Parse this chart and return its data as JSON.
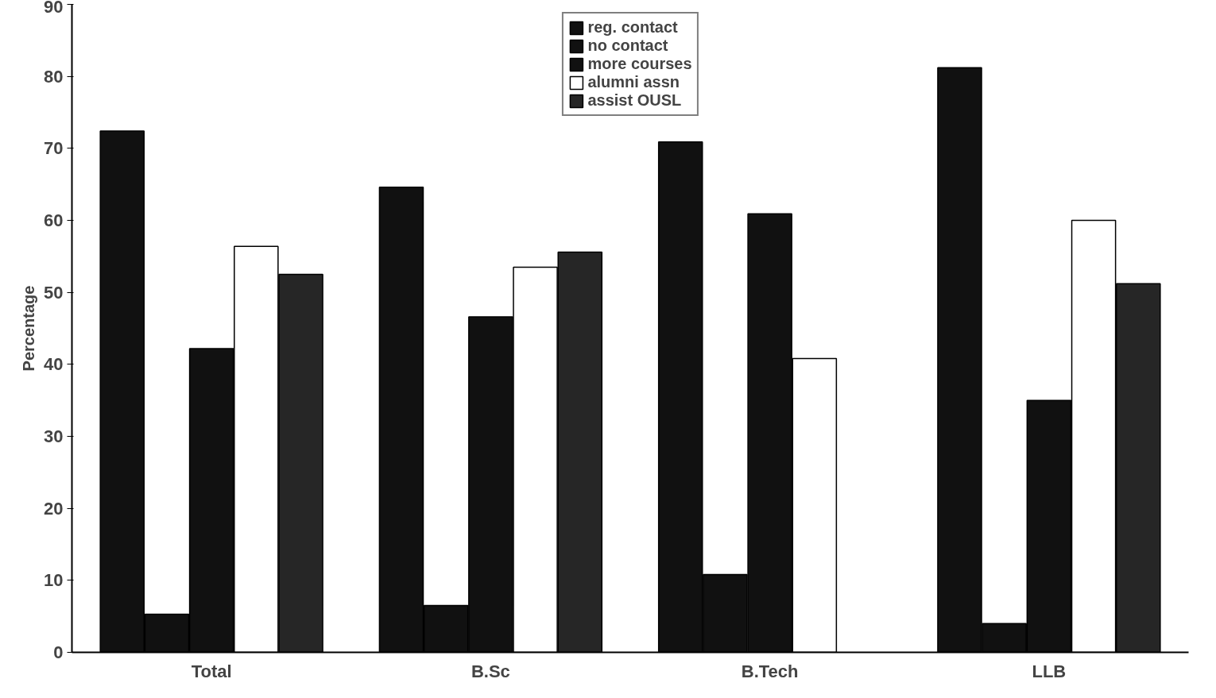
{
  "chart_data": {
    "type": "bar",
    "ylabel": "Percentage",
    "categories": [
      "Total",
      "B.Sc",
      "B.Tech",
      "LLB"
    ],
    "series": [
      {
        "name": "reg. contact",
        "color": "#111111",
        "values": [
          72.4,
          64.6,
          70.9,
          81.2
        ]
      },
      {
        "name": "no contact",
        "color": "#111111",
        "values": [
          5.3,
          6.5,
          10.8,
          4
        ]
      },
      {
        "name": "more courses",
        "color": "#111111",
        "values": [
          42.2,
          46.6,
          60.9,
          35
        ]
      },
      {
        "name": "alumni assn",
        "color": "#ffffff",
        "values": [
          56.4,
          53.5,
          40.8,
          60
        ]
      },
      {
        "name": "assist OUSL",
        "color": "#262626",
        "values": [
          52.5,
          55.6,
          null,
          51.2
        ]
      }
    ],
    "ylim": [
      0,
      90
    ],
    "yticks": [
      0,
      10,
      20,
      30,
      40,
      50,
      60,
      70,
      80,
      90
    ],
    "grid": false,
    "legend": "top"
  }
}
